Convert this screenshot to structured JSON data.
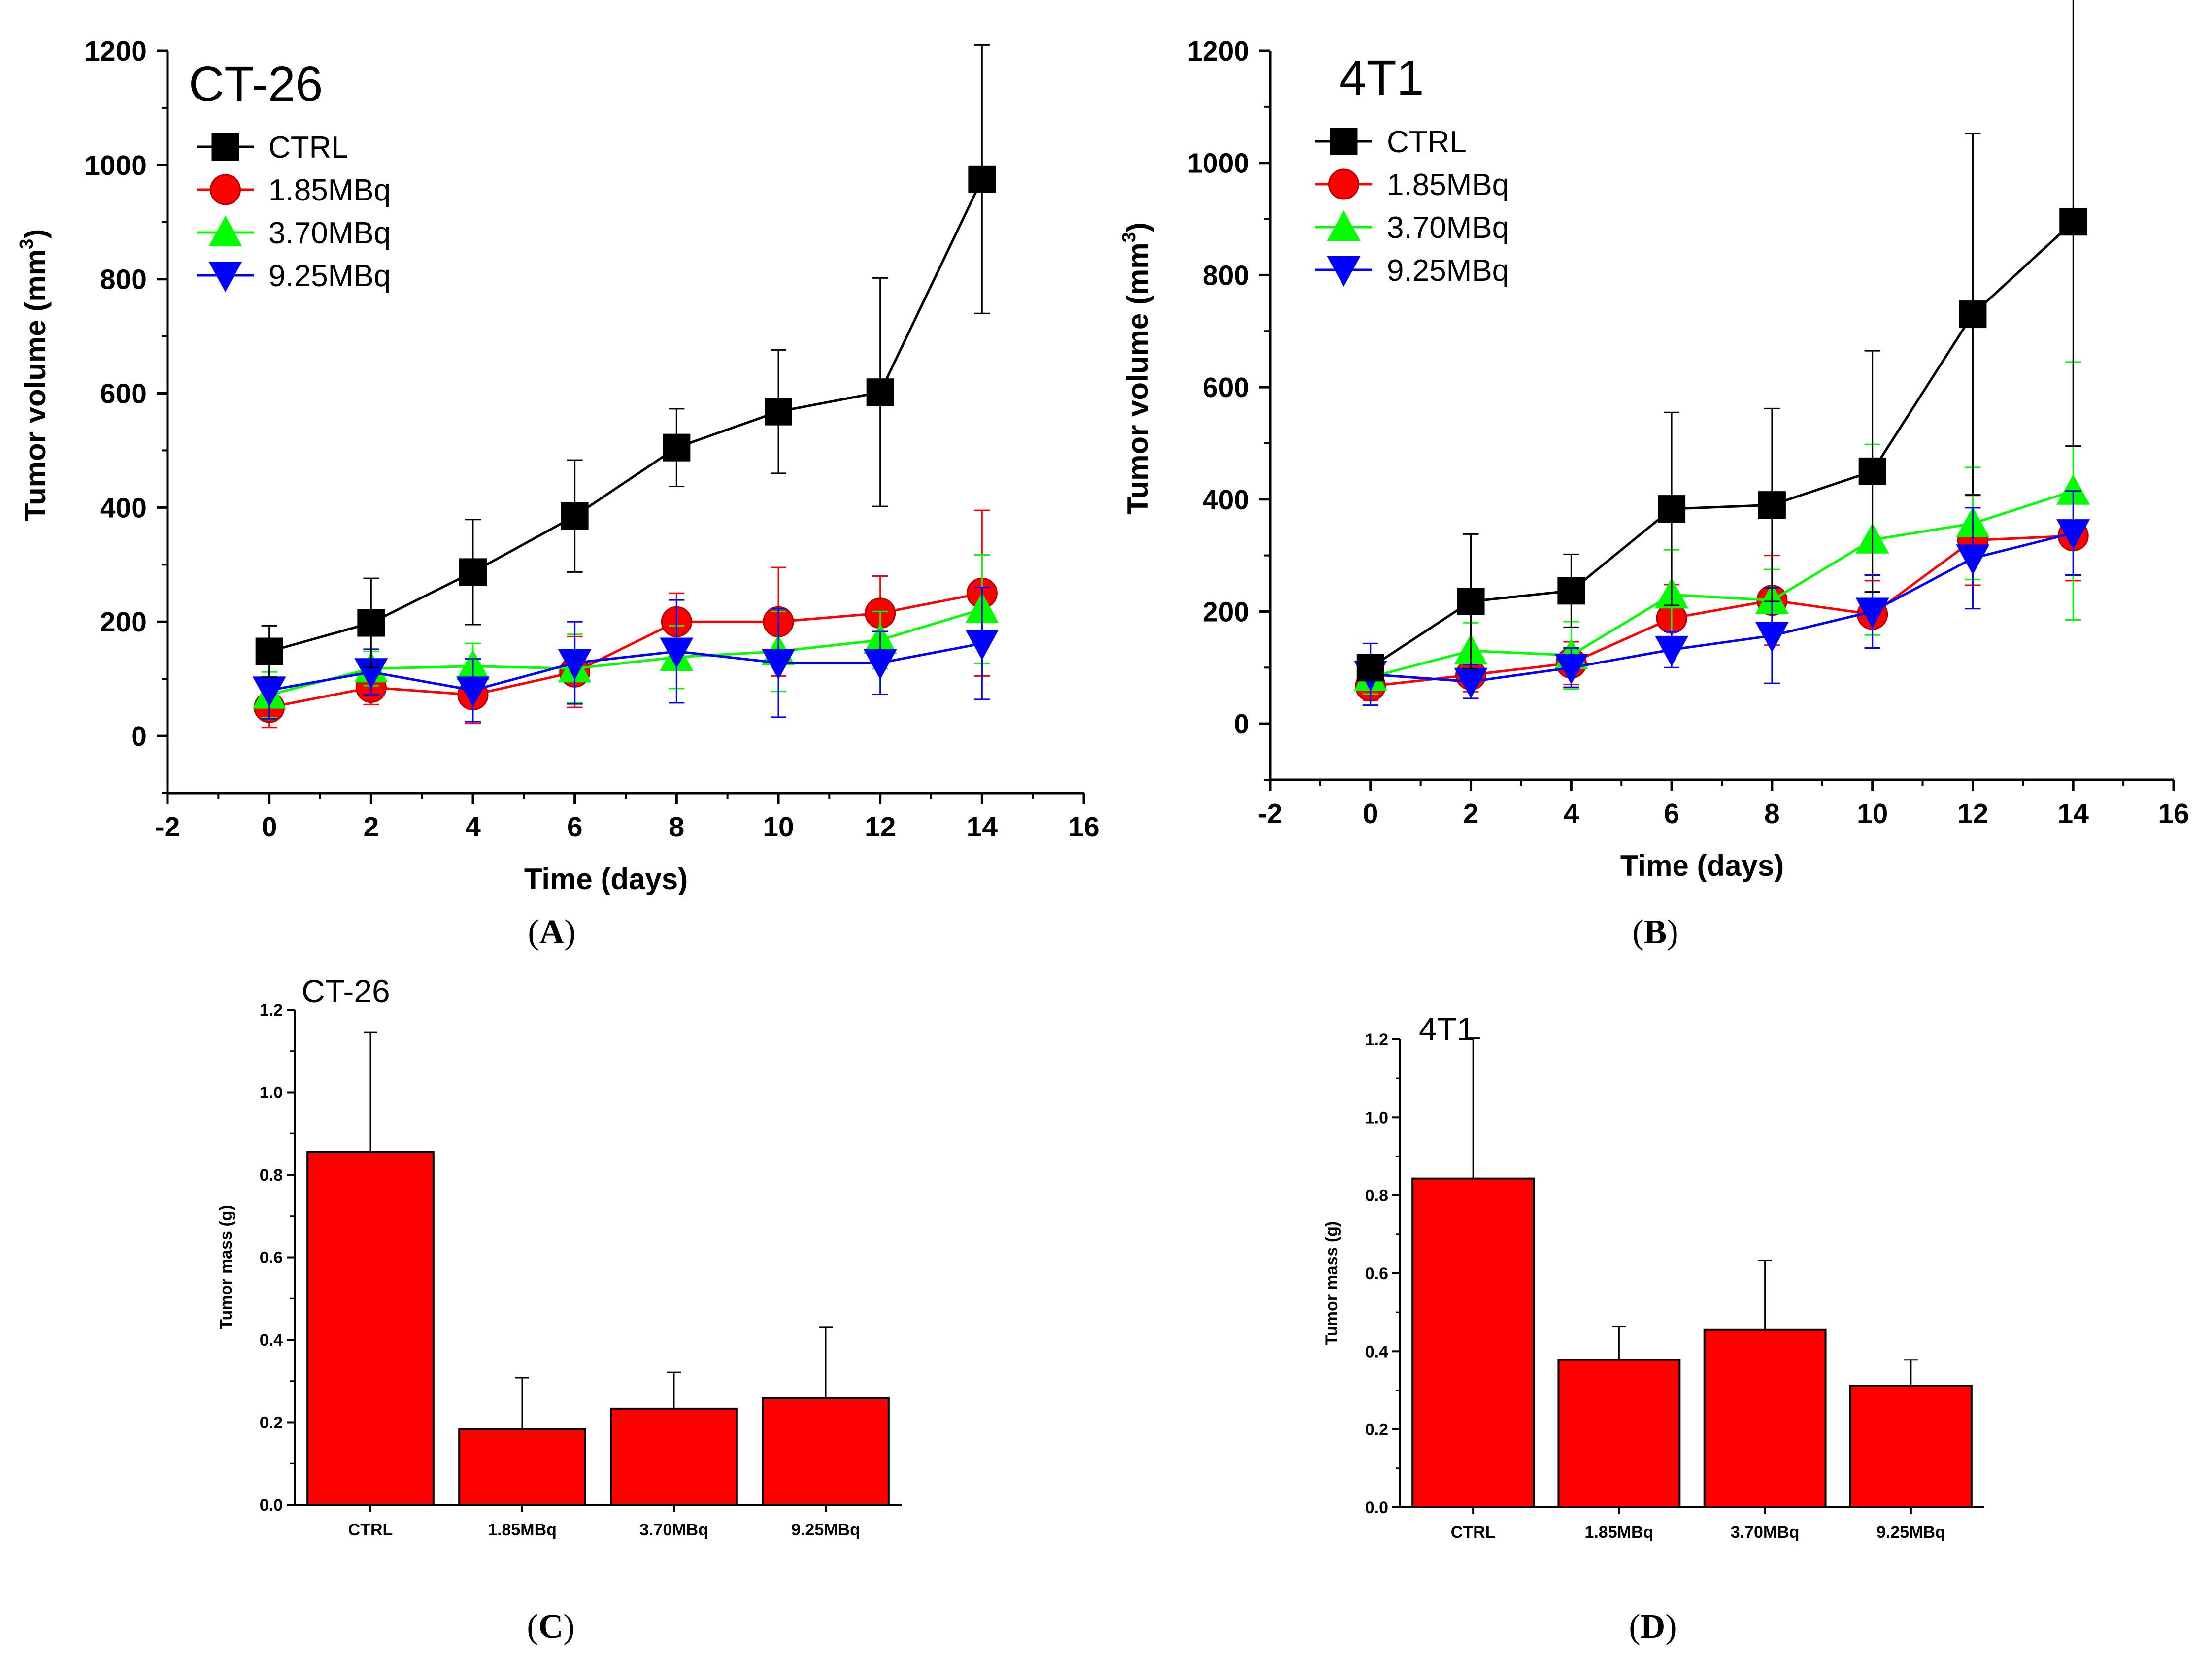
{
  "chart_data": [
    {
      "id": "A",
      "type": "line",
      "panel_label": "A",
      "title": "CT-26",
      "xlabel": "Time (days)",
      "ylabel": "Tumor volume (mm",
      "ylabel_sup": "3",
      "ylabel_close": ")",
      "xlim": [
        -2,
        16
      ],
      "ylim": [
        -100,
        1200
      ],
      "xticks": [
        "-2",
        "0",
        "2",
        "4",
        "6",
        "8",
        "10",
        "12",
        "14",
        "16"
      ],
      "yticks": [
        "0",
        "200",
        "400",
        "600",
        "800",
        "1000",
        "1200"
      ],
      "x": [
        0,
        2,
        4,
        6,
        8,
        10,
        12,
        14
      ],
      "series": [
        {
          "name": "CTRL",
          "color": "#000000",
          "marker": "square",
          "values": [
            148,
            198,
            287,
            385,
            505,
            568,
            602,
            975
          ],
          "errors": [
            45,
            78,
            92,
            98,
            68,
            108,
            200,
            235
          ]
        },
        {
          "name": "1.85MBq",
          "color": "#ff0000",
          "marker": "circle",
          "values": [
            50,
            85,
            72,
            112,
            200,
            200,
            215,
            250
          ],
          "errors": [
            35,
            30,
            50,
            62,
            50,
            95,
            65,
            145
          ]
        },
        {
          "name": "3.70MBq",
          "color": "#00ff00",
          "marker": "triangle-up",
          "values": [
            72,
            118,
            122,
            118,
            138,
            148,
            168,
            222
          ],
          "errors": [
            40,
            30,
            40,
            60,
            55,
            70,
            50,
            95
          ]
        },
        {
          "name": "9.25MBq",
          "color": "#0000ff",
          "marker": "triangle-down",
          "values": [
            80,
            112,
            80,
            128,
            148,
            128,
            128,
            162
          ],
          "errors": [
            50,
            40,
            55,
            72,
            90,
            95,
            55,
            98
          ]
        }
      ]
    },
    {
      "id": "B",
      "type": "line",
      "panel_label": "B",
      "title": "4T1",
      "xlabel": "Time (days)",
      "ylabel": "Tumor volume (mm",
      "ylabel_sup": "3",
      "ylabel_close": ")",
      "xlim": [
        -2,
        16
      ],
      "ylim": [
        -100,
        1200
      ],
      "xticks": [
        "-2",
        "0",
        "2",
        "4",
        "6",
        "8",
        "10",
        "12",
        "14",
        "16"
      ],
      "yticks": [
        "0",
        "200",
        "400",
        "600",
        "800",
        "1000",
        "1200"
      ],
      "x": [
        0,
        2,
        4,
        6,
        8,
        10,
        12,
        14
      ],
      "series": [
        {
          "name": "CTRL",
          "color": "#000000",
          "marker": "square",
          "values": [
            100,
            218,
            237,
            383,
            390,
            450,
            730,
            895
          ],
          "errors": [
            20,
            120,
            65,
            172,
            172,
            215,
            322,
            400
          ]
        },
        {
          "name": "1.85MBq",
          "color": "#ff0000",
          "marker": "circle",
          "values": [
            67,
            87,
            108,
            188,
            220,
            195,
            327,
            335
          ],
          "errors": [
            25,
            30,
            38,
            60,
            80,
            60,
            80,
            80
          ]
        },
        {
          "name": "3.70MBq",
          "color": "#00ff00",
          "marker": "triangle-up",
          "values": [
            83,
            130,
            122,
            230,
            220,
            328,
            357,
            415
          ],
          "errors": [
            30,
            50,
            60,
            80,
            55,
            170,
            100,
            230
          ]
        },
        {
          "name": "9.25MBq",
          "color": "#0000ff",
          "marker": "triangle-down",
          "values": [
            88,
            75,
            100,
            132,
            157,
            200,
            295,
            340
          ],
          "errors": [
            55,
            30,
            35,
            32,
            85,
            65,
            90,
            75
          ]
        }
      ]
    },
    {
      "id": "C",
      "type": "bar",
      "panel_label": "C",
      "title": "CT-26",
      "xlabel": "",
      "ylabel": "Tumor mass (g)",
      "ylim": [
        0,
        1.2
      ],
      "yticks": [
        "0.0",
        "0.2",
        "0.4",
        "0.6",
        "0.8",
        "1.0",
        "1.2"
      ],
      "categories": [
        "CTRL",
        "1.85MBq",
        "3.70MBq",
        "9.25MBq"
      ],
      "values": [
        0.855,
        0.183,
        0.233,
        0.258
      ],
      "errors": [
        0.29,
        0.125,
        0.088,
        0.172
      ],
      "color": "#ff0000"
    },
    {
      "id": "D",
      "type": "bar",
      "panel_label": "D",
      "title": "4T1",
      "xlabel": "",
      "ylabel": "Tumor mass (g)",
      "ylim": [
        0,
        1.2
      ],
      "yticks": [
        "0.0",
        "0.2",
        "0.4",
        "0.6",
        "0.8",
        "1.0",
        "1.2"
      ],
      "categories": [
        "CTRL",
        "1.85MBq",
        "3.70MBq",
        "9.25MBq"
      ],
      "values": [
        0.843,
        0.378,
        0.455,
        0.312
      ],
      "errors": [
        0.36,
        0.085,
        0.178,
        0.066
      ],
      "color": "#ff0000"
    }
  ]
}
